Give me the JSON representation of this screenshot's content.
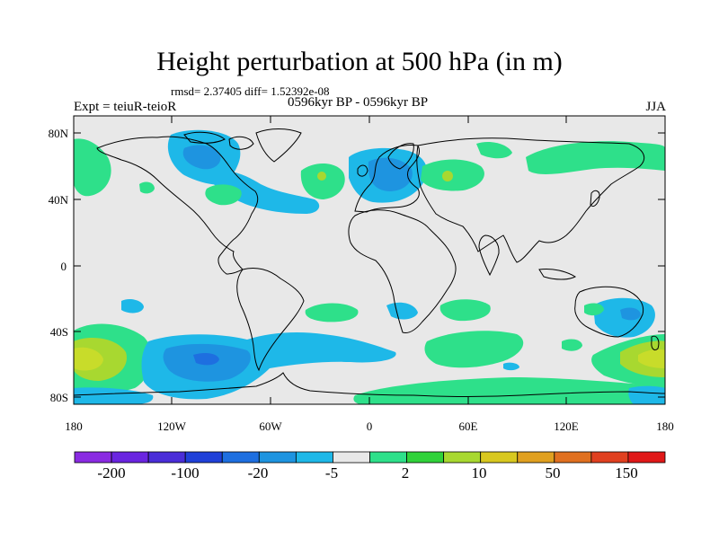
{
  "title": "Height perturbation at 500 hPa (in m)",
  "stats": "rmsd= 2.37405 diff= 1.52392e-08",
  "left_label": "Expt = teiuR-teioR",
  "center_label": "0596kyr BP - 0596kyr BP",
  "right_label": "JJA",
  "lat_ticks": [
    "80N",
    "40N",
    "0",
    "40S",
    "80S"
  ],
  "lon_ticks": [
    "180",
    "120W",
    "60W",
    "0",
    "60E",
    "120E",
    "180"
  ],
  "colorbar": {
    "colors": [
      "#8a2be2",
      "#6a25e0",
      "#4a2dd8",
      "#2040d8",
      "#1e6fe0",
      "#1e94e0",
      "#1eb8e8",
      "#e8e8e8",
      "#2ee08a",
      "#30d23a",
      "#a8d830",
      "#d8c820",
      "#e0a020",
      "#e07020",
      "#e04020",
      "#e01818"
    ],
    "labels": [
      "-200",
      "-100",
      "-20",
      "-5",
      "2",
      "10",
      "50",
      "150"
    ]
  },
  "colors": {
    "background": "#e8e8e8",
    "green": "#2ee08a",
    "cyan": "#1eb8e8",
    "blue": "#1e94e0",
    "darkblue": "#1e6fe0",
    "lime": "#a8d830",
    "yellowgreen": "#c8dc2a"
  }
}
